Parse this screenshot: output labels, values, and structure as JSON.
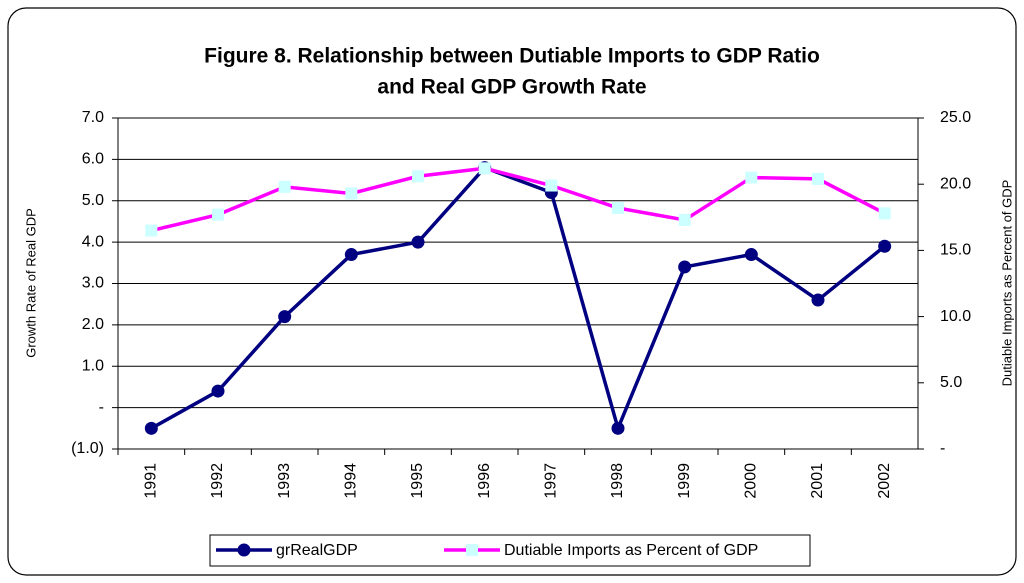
{
  "chart_data": {
    "type": "line",
    "title": "Figure 8.  Relationship between Dutiable Imports to GDP Ratio",
    "subtitle": "and Real GDP Growth Rate",
    "y_label": "Growth Rate of Real GDP",
    "y2_label": "Dutiable Imports as Percent of GDP",
    "categories": [
      "1991",
      "1992",
      "1993",
      "1994",
      "1995",
      "1996",
      "1997",
      "1998",
      "1999",
      "2000",
      "2001",
      "2002"
    ],
    "series": [
      {
        "name": "grRealGDP",
        "color": "#000080",
        "marker": "circle",
        "marker_color": "#000080",
        "values": [
          -0.5,
          0.4,
          2.2,
          3.7,
          4.0,
          5.8,
          5.2,
          -0.5,
          3.4,
          3.7,
          2.6,
          3.9
        ]
      },
      {
        "name": "Dutiable Imports as Percent of GDP",
        "color": "#ff00ff",
        "marker": "square",
        "marker_color": "#ccffff",
        "axis": "y2",
        "values": [
          16.5,
          17.7,
          19.8,
          19.3,
          20.6,
          21.2,
          19.9,
          18.2,
          17.3,
          20.5,
          20.4,
          17.8
        ]
      }
    ],
    "ylim": [
      -1,
      7
    ],
    "yticks": [
      {
        "value": -1,
        "label": "(1.0)"
      },
      {
        "value": 0,
        "label": "-"
      },
      {
        "value": 1,
        "label": "1.0"
      },
      {
        "value": 2,
        "label": "2.0"
      },
      {
        "value": 3,
        "label": "3.0"
      },
      {
        "value": 4,
        "label": "4.0"
      },
      {
        "value": 5,
        "label": "5.0"
      },
      {
        "value": 6,
        "label": "6.0"
      },
      {
        "value": 7,
        "label": "7.0"
      }
    ],
    "y2lim": [
      0,
      25
    ],
    "y2ticks": [
      {
        "value": 0,
        "label": "-"
      },
      {
        "value": 5,
        "label": "5.0"
      },
      {
        "value": 10,
        "label": "10.0"
      },
      {
        "value": 15,
        "label": "15.0"
      },
      {
        "value": 20,
        "label": "20.0"
      },
      {
        "value": 25,
        "label": "25.0"
      }
    ],
    "grid": true,
    "legend": "bottom"
  }
}
